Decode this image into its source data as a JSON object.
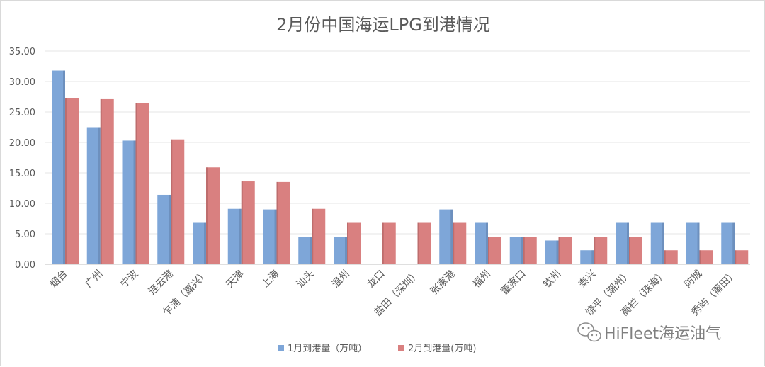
{
  "chart_data": {
    "type": "bar",
    "title": "2月份中国海运LPG到港情况",
    "ylim": [
      0,
      35
    ],
    "yticks": [
      "0.00",
      "5.00",
      "10.00",
      "15.00",
      "20.00",
      "25.00",
      "30.00",
      "35.00"
    ],
    "categories": [
      "烟台",
      "广州",
      "宁波",
      "连云港",
      "乍浦（嘉兴）",
      "天津",
      "上海",
      "汕头",
      "温州",
      "龙口",
      "盐田（深圳）",
      "张家港",
      "福州",
      "董家口",
      "钦州",
      "泰兴",
      "饶平（潮州）",
      "高栏（珠海）",
      "防城",
      "秀屿（莆田）"
    ],
    "series": [
      {
        "name": "1月到港量（万吨）",
        "color": "#7ea6d8",
        "values": [
          31.8,
          22.5,
          20.3,
          11.4,
          6.8,
          9.1,
          9.0,
          4.5,
          4.5,
          0,
          0,
          9.0,
          6.8,
          4.5,
          3.9,
          2.3,
          6.8,
          6.8,
          6.8,
          6.8
        ]
      },
      {
        "name": "2月到港量(万吨)",
        "color": "#d98080",
        "values": [
          27.3,
          27.1,
          26.5,
          20.5,
          15.9,
          13.6,
          13.5,
          9.1,
          6.8,
          6.8,
          6.8,
          6.8,
          4.5,
          4.5,
          4.5,
          4.5,
          4.5,
          2.3,
          2.3,
          2.3
        ]
      }
    ],
    "grid": true,
    "legend_position": "bottom"
  },
  "watermark": {
    "text": "HiFleet海运油气",
    "icon": "wechat-icon"
  }
}
